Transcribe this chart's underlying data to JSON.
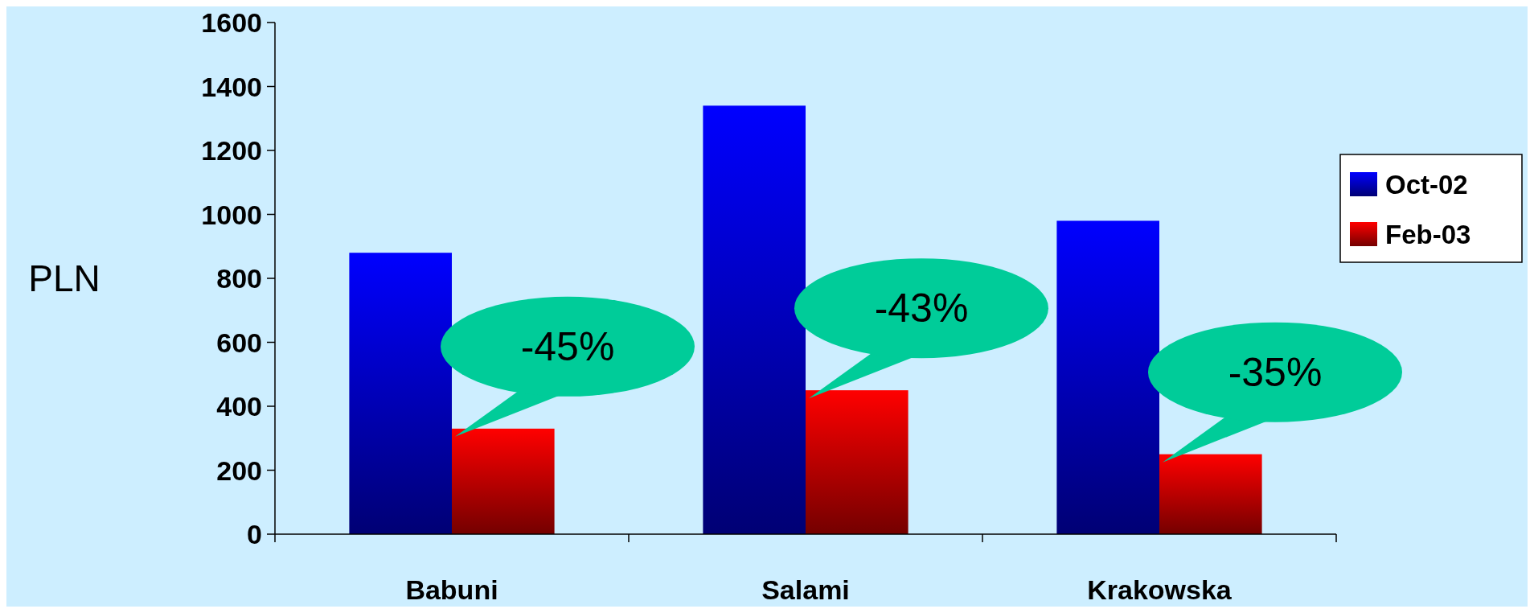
{
  "chart_data": {
    "type": "bar",
    "ylabel": "PLN",
    "categories": [
      "Babuni",
      "Salami",
      "Krakowska"
    ],
    "series": [
      {
        "name": "Oct-02",
        "color": "#0000ff",
        "values": [
          880,
          1340,
          980
        ]
      },
      {
        "name": "Feb-03",
        "color": "#ff0000",
        "values": [
          330,
          450,
          250
        ]
      }
    ],
    "ylim": [
      0,
      1600
    ],
    "yticks": [
      0,
      200,
      400,
      600,
      800,
      1000,
      1200,
      1400,
      1600
    ],
    "grid": false,
    "legend": "right",
    "annotations": [
      {
        "text": "-45%",
        "x": "Babuni",
        "y": 330
      },
      {
        "text": "-43%",
        "x": "Salami",
        "y": 450
      },
      {
        "text": "-35%",
        "x": "Krakowska",
        "y": 250
      }
    ]
  }
}
